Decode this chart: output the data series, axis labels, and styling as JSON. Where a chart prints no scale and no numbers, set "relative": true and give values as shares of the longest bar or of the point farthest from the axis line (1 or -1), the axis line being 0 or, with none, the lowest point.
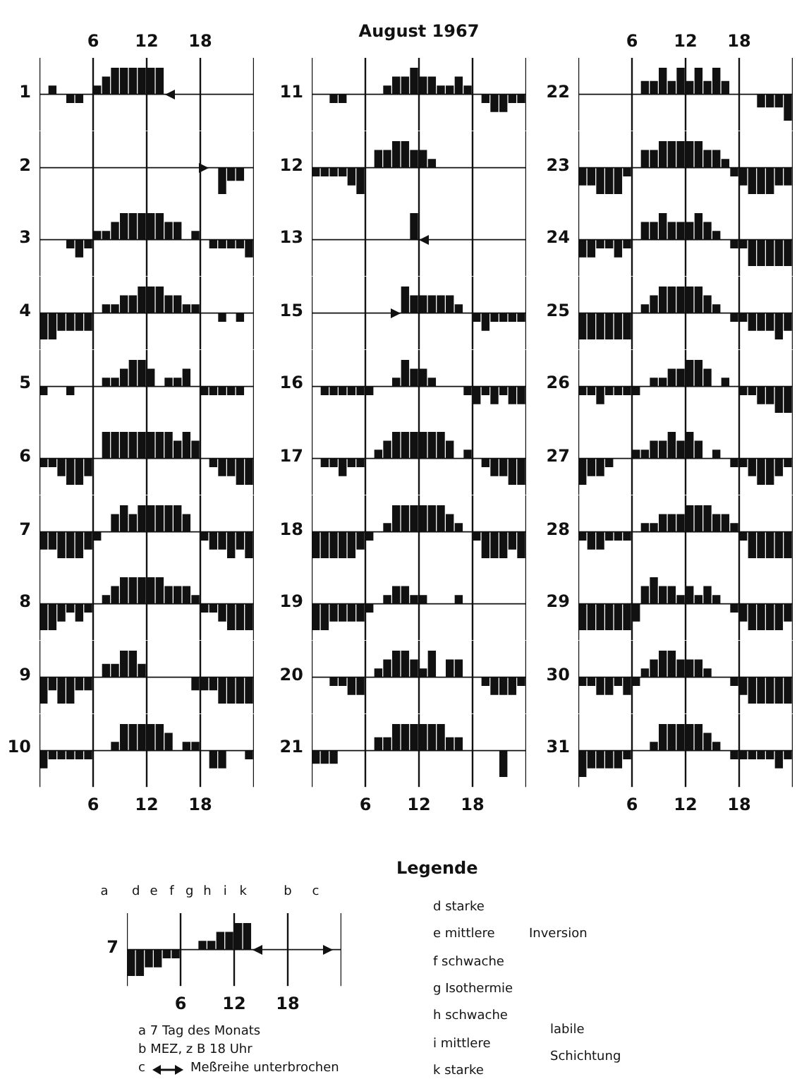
{
  "chart_data": [
    {
      "type": "bar",
      "relative": true,
      "ylabel": "1",
      "color": "#111111",
      "grid": "x",
      "tick_labels": "x",
      "xlim": [
        0,
        24
      ],
      "xticks": [
        6,
        12,
        18
      ],
      "x": [
        0.5,
        1.5,
        2.5,
        3.5,
        4.5,
        5.5,
        6.5,
        7.5,
        8.5,
        9.5,
        10.5,
        11.5,
        12.5,
        13.5
      ],
      "values": [
        0,
        0.33,
        0,
        -0.33,
        -0.33,
        0,
        0.33,
        0.67,
        1,
        1,
        1,
        1,
        1,
        1
      ]
    },
    {
      "type": "bar",
      "relative": true,
      "ylabel": "2",
      "color": "#111111",
      "grid": "x",
      "tick_labels": false,
      "xlim": [
        0,
        24
      ],
      "xticks": [
        6,
        12,
        18
      ],
      "x": [
        19.5,
        20.5,
        21.5,
        22.5,
        23.5
      ],
      "values": [
        0,
        -1,
        -0.5,
        -0.5,
        0
      ]
    },
    {
      "type": "bar",
      "relative": true,
      "ylabel": "3",
      "color": "#111111",
      "grid": "x",
      "tick_labels": false,
      "xlim": [
        0,
        24
      ],
      "xticks": [
        6,
        12,
        18
      ],
      "x": [
        0.5,
        1.5,
        2.5,
        3.5,
        4.5,
        5.5,
        6.5,
        7.5,
        8.5,
        9.5,
        10.5,
        11.5,
        12.5,
        13.5,
        14.5,
        15.5,
        16.5,
        17.5,
        18.5,
        19.5,
        20.5,
        21.5,
        22.5,
        23.5
      ],
      "values": [
        0,
        0,
        0,
        -0.33,
        -0.67,
        -0.33,
        0.33,
        0.33,
        0.67,
        1,
        1,
        1,
        1,
        1,
        0.67,
        0.67,
        0,
        0.33,
        0,
        -0.33,
        -0.33,
        -0.33,
        -0.33,
        -0.67
      ]
    },
    {
      "type": "bar",
      "relative": true,
      "ylabel": "4",
      "color": "#111111",
      "grid": "x",
      "tick_labels": false,
      "xlim": [
        0,
        24
      ],
      "xticks": [
        6,
        12,
        18
      ],
      "x": [
        0.5,
        1.5,
        2.5,
        3.5,
        4.5,
        5.5,
        6.5,
        7.5,
        8.5,
        9.5,
        10.5,
        11.5,
        12.5,
        13.5,
        14.5,
        15.5,
        16.5,
        17.5,
        18.5,
        19.5,
        20.5,
        21.5,
        22.5,
        23.5
      ],
      "values": [
        -1,
        -1,
        -0.67,
        -0.67,
        -0.67,
        -0.67,
        0,
        0.33,
        0.33,
        0.67,
        0.67,
        1,
        1,
        1,
        0.67,
        0.67,
        0.33,
        0.33,
        0,
        0,
        -0.33,
        0,
        -0.33,
        0
      ]
    },
    {
      "type": "bar",
      "relative": true,
      "ylabel": "5",
      "color": "#111111",
      "grid": "x",
      "tick_labels": false,
      "xlim": [
        0,
        24
      ],
      "xticks": [
        6,
        12,
        18
      ],
      "x": [
        0.5,
        1.5,
        2.5,
        3.5,
        4.5,
        5.5,
        6.5,
        7.5,
        8.5,
        9.5,
        10.5,
        11.5,
        12.5,
        13.5,
        14.5,
        15.5,
        16.5,
        17.5,
        18.5,
        19.5,
        20.5,
        21.5,
        22.5,
        23.5
      ],
      "values": [
        -0.33,
        0,
        0,
        -0.33,
        0,
        0,
        0,
        0.33,
        0.33,
        0.67,
        1,
        1,
        0.67,
        0,
        0.33,
        0.33,
        0.67,
        0,
        -0.33,
        -0.33,
        -0.33,
        -0.33,
        -0.33,
        0
      ]
    },
    {
      "type": "bar",
      "relative": true,
      "ylabel": "6",
      "color": "#111111",
      "grid": "x",
      "tick_labels": false,
      "xlim": [
        0,
        24
      ],
      "xticks": [
        6,
        12,
        18
      ],
      "x": [
        0.5,
        1.5,
        2.5,
        3.5,
        4.5,
        5.5,
        6.5,
        7.5,
        8.5,
        9.5,
        10.5,
        11.5,
        12.5,
        13.5,
        14.5,
        15.5,
        16.5,
        17.5,
        18.5,
        19.5,
        20.5,
        21.5,
        22.5,
        23.5
      ],
      "values": [
        -0.33,
        -0.33,
        -0.67,
        -1,
        -1,
        -0.67,
        0,
        1,
        1,
        1,
        1,
        1,
        1,
        1,
        1,
        0.67,
        1,
        0.67,
        0,
        -0.33,
        -0.67,
        -0.67,
        -1,
        -1
      ]
    },
    {
      "type": "bar",
      "relative": true,
      "ylabel": "7",
      "color": "#111111",
      "grid": "x",
      "tick_labels": false,
      "xlim": [
        0,
        24
      ],
      "xticks": [
        6,
        12,
        18
      ],
      "x": [
        0.5,
        1.5,
        2.5,
        3.5,
        4.5,
        5.5,
        6.5,
        7.5,
        8.5,
        9.5,
        10.5,
        11.5,
        12.5,
        13.5,
        14.5,
        15.5,
        16.5,
        17.5,
        18.5,
        19.5,
        20.5,
        21.5,
        22.5,
        23.5
      ],
      "values": [
        -0.67,
        -0.67,
        -1,
        -1,
        -1,
        -0.67,
        -0.33,
        0,
        0.67,
        1,
        0.67,
        1,
        1,
        1,
        1,
        1,
        0.67,
        0,
        -0.33,
        -0.67,
        -0.67,
        -1,
        -0.67,
        -1
      ]
    },
    {
      "type": "bar",
      "relative": true,
      "ylabel": "8",
      "color": "#111111",
      "grid": "x",
      "tick_labels": false,
      "xlim": [
        0,
        24
      ],
      "xticks": [
        6,
        12,
        18
      ],
      "x": [
        0.5,
        1.5,
        2.5,
        3.5,
        4.5,
        5.5,
        6.5,
        7.5,
        8.5,
        9.5,
        10.5,
        11.5,
        12.5,
        13.5,
        14.5,
        15.5,
        16.5,
        17.5,
        18.5,
        19.5,
        20.5,
        21.5,
        22.5,
        23.5
      ],
      "values": [
        -1,
        -1,
        -0.67,
        -0.33,
        -0.67,
        -0.33,
        0,
        0.33,
        0.67,
        1,
        1,
        1,
        1,
        1,
        0.67,
        0.67,
        0.67,
        0.33,
        -0.33,
        -0.33,
        -0.67,
        -1,
        -1,
        -1
      ]
    },
    {
      "type": "bar",
      "relative": true,
      "ylabel": "9",
      "color": "#111111",
      "grid": "x",
      "tick_labels": false,
      "xlim": [
        0,
        24
      ],
      "xticks": [
        6,
        12,
        18
      ],
      "x": [
        0.5,
        1.5,
        2.5,
        3.5,
        4.5,
        5.5,
        6.5,
        7.5,
        8.5,
        9.5,
        10.5,
        11.5,
        12.5,
        13.5,
        14.5,
        15.5,
        16.5,
        17.5,
        18.5,
        19.5,
        20.5,
        21.5,
        22.5,
        23.5
      ],
      "values": [
        -1,
        -0.5,
        -1,
        -1,
        -0.5,
        -0.5,
        0,
        0.5,
        0.5,
        1,
        1,
        0.5,
        0,
        0,
        0,
        0,
        0,
        -0.5,
        -0.5,
        -0.5,
        -1,
        -1,
        -1,
        -1
      ]
    },
    {
      "type": "bar",
      "relative": true,
      "ylabel": "10",
      "color": "#111111",
      "grid": "x",
      "tick_labels": "x",
      "xlim": [
        0,
        24
      ],
      "xticks": [
        6,
        12,
        18
      ],
      "x": [
        0.5,
        1.5,
        2.5,
        3.5,
        4.5,
        5.5,
        6.5,
        7.5,
        8.5,
        9.5,
        10.5,
        11.5,
        12.5,
        13.5,
        14.5,
        15.5,
        16.5,
        17.5,
        18.5,
        19.5,
        20.5,
        21.5,
        22.5,
        23.5
      ],
      "values": [
        -0.67,
        -0.33,
        -0.33,
        -0.33,
        -0.33,
        -0.33,
        0,
        0,
        0.33,
        1,
        1,
        1,
        1,
        1,
        0.67,
        0,
        0.33,
        0.33,
        0,
        -0.67,
        -0.67,
        0,
        0,
        -0.33
      ]
    },
    {
      "type": "bar",
      "relative": true,
      "title": "August 1967",
      "ylabel": "11",
      "color": "#111111",
      "grid": "x",
      "tick_labels": false,
      "xlim": [
        0,
        24
      ],
      "xticks": [
        6,
        12,
        18
      ],
      "x": [
        0.5,
        1.5,
        2.5,
        3.5,
        4.5,
        5.5,
        6.5,
        7.5,
        8.5,
        9.5,
        10.5,
        11.5,
        12.5,
        13.5,
        14.5,
        15.5,
        16.5,
        17.5,
        18.5,
        19.5,
        20.5,
        21.5,
        22.5,
        23.5
      ],
      "values": [
        0,
        0,
        -0.33,
        -0.33,
        0,
        0,
        0,
        0,
        0.33,
        0.67,
        0.67,
        1,
        0.67,
        0.67,
        0.33,
        0.33,
        0.67,
        0.33,
        0,
        -0.33,
        -0.67,
        -0.67,
        -0.33,
        -0.33
      ]
    },
    {
      "type": "bar",
      "relative": true,
      "ylabel": "12",
      "color": "#111111",
      "grid": "x",
      "tick_labels": false,
      "xlim": [
        0,
        24
      ],
      "xticks": [
        6,
        12,
        18
      ],
      "x": [
        0.5,
        1.5,
        2.5,
        3.5,
        4.5,
        5.5,
        6.5,
        7.5,
        8.5,
        9.5,
        10.5,
        11.5,
        12.5,
        13.5,
        14.5,
        15.5,
        16.5,
        17.5,
        18.5,
        19.5,
        20.5,
        21.5,
        22.5,
        23.5
      ],
      "values": [
        -0.33,
        -0.33,
        -0.33,
        -0.33,
        -0.67,
        -1,
        0,
        0.67,
        0.67,
        1,
        1,
        0.67,
        0.67,
        0.33,
        0,
        0,
        0,
        0,
        0,
        0,
        0,
        0,
        0,
        0
      ]
    },
    {
      "type": "bar",
      "relative": true,
      "ylabel": "13",
      "color": "#111111",
      "grid": "x",
      "tick_labels": false,
      "xlim": [
        0,
        24
      ],
      "xticks": [
        6,
        12,
        18
      ],
      "x": [
        0.5,
        1.5,
        2.5,
        3.5,
        4.5,
        5.5,
        6.5,
        7.5,
        8.5,
        9.5,
        10.5,
        11.5
      ],
      "values": [
        0,
        0,
        0,
        0,
        0,
        0,
        0,
        0,
        0,
        0,
        0,
        1
      ]
    },
    {
      "type": "bar",
      "relative": true,
      "ylabel": "15",
      "color": "#111111",
      "grid": "x",
      "tick_labels": false,
      "xlim": [
        0,
        24
      ],
      "xticks": [
        6,
        12,
        18
      ],
      "x": [
        10.5,
        11.5,
        12.5,
        13.5,
        14.5,
        15.5,
        16.5,
        17.5,
        18.5,
        19.5,
        20.5,
        21.5,
        22.5,
        23.5
      ],
      "values": [
        1,
        0.67,
        0.67,
        0.67,
        0.67,
        0.67,
        0.33,
        0,
        -0.33,
        -0.67,
        -0.33,
        -0.33,
        -0.33,
        -0.33
      ]
    },
    {
      "type": "bar",
      "relative": true,
      "ylabel": "16",
      "color": "#111111",
      "grid": "x",
      "tick_labels": false,
      "xlim": [
        0,
        24
      ],
      "xticks": [
        6,
        12,
        18
      ],
      "x": [
        0.5,
        1.5,
        2.5,
        3.5,
        4.5,
        5.5,
        6.5,
        7.5,
        8.5,
        9.5,
        10.5,
        11.5,
        12.5,
        13.5,
        14.5,
        15.5,
        16.5,
        17.5,
        18.5,
        19.5,
        20.5,
        21.5,
        22.5,
        23.5
      ],
      "values": [
        0,
        -0.33,
        -0.33,
        -0.33,
        -0.33,
        -0.33,
        -0.33,
        0,
        0,
        0.33,
        1,
        0.67,
        0.67,
        0.33,
        0,
        0,
        0,
        -0.33,
        -0.67,
        -0.33,
        -0.67,
        -0.33,
        -0.67,
        -0.67
      ]
    },
    {
      "type": "bar",
      "relative": true,
      "ylabel": "17",
      "color": "#111111",
      "grid": "x",
      "tick_labels": false,
      "xlim": [
        0,
        24
      ],
      "xticks": [
        6,
        12,
        18
      ],
      "x": [
        0.5,
        1.5,
        2.5,
        3.5,
        4.5,
        5.5,
        6.5,
        7.5,
        8.5,
        9.5,
        10.5,
        11.5,
        12.5,
        13.5,
        14.5,
        15.5,
        16.5,
        17.5,
        18.5,
        19.5,
        20.5,
        21.5,
        22.5,
        23.5
      ],
      "values": [
        0,
        -0.33,
        -0.33,
        -0.67,
        -0.33,
        -0.33,
        0,
        0.33,
        0.67,
        1,
        1,
        1,
        1,
        1,
        1,
        0.67,
        0,
        0.33,
        0,
        -0.33,
        -0.67,
        -0.67,
        -1,
        -1
      ]
    },
    {
      "type": "bar",
      "relative": true,
      "ylabel": "18",
      "color": "#111111",
      "grid": "x",
      "tick_labels": false,
      "xlim": [
        0,
        24
      ],
      "xticks": [
        6,
        12,
        18
      ],
      "x": [
        0.5,
        1.5,
        2.5,
        3.5,
        4.5,
        5.5,
        6.5,
        7.5,
        8.5,
        9.5,
        10.5,
        11.5,
        12.5,
        13.5,
        14.5,
        15.5,
        16.5,
        17.5,
        18.5,
        19.5,
        20.5,
        21.5,
        22.5,
        23.5
      ],
      "values": [
        -1,
        -1,
        -1,
        -1,
        -1,
        -0.67,
        -0.33,
        0,
        0.33,
        1,
        1,
        1,
        1,
        1,
        1,
        0.67,
        0.33,
        0,
        -0.33,
        -1,
        -1,
        -1,
        -0.67,
        -1
      ]
    },
    {
      "type": "bar",
      "relative": true,
      "ylabel": "19",
      "color": "#111111",
      "grid": "x",
      "tick_labels": false,
      "xlim": [
        0,
        24
      ],
      "xticks": [
        6,
        12,
        18
      ],
      "x": [
        0.5,
        1.5,
        2.5,
        3.5,
        4.5,
        5.5,
        6.5,
        7.5,
        8.5,
        9.5,
        10.5,
        11.5,
        12.5,
        13.5,
        14.5,
        15.5,
        16.5,
        17.5,
        18.5,
        19.5,
        20.5,
        21.5,
        22.5,
        23.5
      ],
      "values": [
        -1,
        -1,
        -0.67,
        -0.67,
        -0.67,
        -0.67,
        -0.33,
        0,
        0.33,
        0.67,
        0.67,
        0.33,
        0.33,
        0,
        0,
        0,
        0.33,
        0,
        0,
        0,
        0,
        0,
        0,
        0
      ]
    },
    {
      "type": "bar",
      "relative": true,
      "ylabel": "20",
      "color": "#111111",
      "grid": "x",
      "tick_labels": false,
      "xlim": [
        0,
        24
      ],
      "xticks": [
        6,
        12,
        18
      ],
      "x": [
        0.5,
        1.5,
        2.5,
        3.5,
        4.5,
        5.5,
        6.5,
        7.5,
        8.5,
        9.5,
        10.5,
        11.5,
        12.5,
        13.5,
        14.5,
        15.5,
        16.5,
        17.5,
        18.5,
        19.5,
        20.5,
        21.5,
        22.5,
        23.5
      ],
      "values": [
        0,
        0,
        -0.33,
        -0.33,
        -0.67,
        -0.67,
        0,
        0.33,
        0.67,
        1,
        1,
        0.67,
        0.33,
        1,
        0,
        0.67,
        0.67,
        0,
        0,
        -0.33,
        -0.67,
        -0.67,
        -0.67,
        -0.33
      ]
    },
    {
      "type": "bar",
      "relative": true,
      "ylabel": "21",
      "color": "#111111",
      "grid": "x",
      "tick_labels": "x",
      "xlim": [
        0,
        24
      ],
      "xticks": [
        6,
        12,
        18
      ],
      "x": [
        0.5,
        1.5,
        2.5,
        3.5,
        4.5,
        5.5,
        6.5,
        7.5,
        8.5,
        9.5,
        10.5,
        11.5,
        12.5,
        13.5,
        14.5,
        15.5,
        16.5,
        17.5,
        18.5,
        19.5,
        20.5,
        21.5,
        22.5,
        23.5
      ],
      "values": [
        -0.5,
        -0.5,
        -0.5,
        0,
        0,
        0,
        0,
        0.5,
        0.5,
        1,
        1,
        1,
        1,
        1,
        1,
        0.5,
        0.5,
        0,
        0,
        0,
        0,
        -1,
        0,
        0
      ]
    },
    {
      "type": "bar",
      "relative": true,
      "ylabel": "22",
      "color": "#111111",
      "grid": "x",
      "tick_labels": "x",
      "xlim": [
        0,
        24
      ],
      "xticks": [
        6,
        12,
        18
      ],
      "x": [
        0.5,
        1.5,
        2.5,
        3.5,
        4.5,
        5.5,
        6.5,
        7.5,
        8.5,
        9.5,
        10.5,
        11.5,
        12.5,
        13.5,
        14.5,
        15.5,
        16.5,
        17.5,
        18.5,
        19.5,
        20.5,
        21.5,
        22.5,
        23.5
      ],
      "values": [
        0,
        0,
        0,
        0,
        0,
        0,
        0,
        0.5,
        0.5,
        1,
        0.5,
        1,
        0.5,
        1,
        0.5,
        1,
        0.5,
        0,
        0,
        0,
        -0.5,
        -0.5,
        -0.5,
        -1
      ]
    },
    {
      "type": "bar",
      "relative": true,
      "ylabel": "23",
      "color": "#111111",
      "grid": "x",
      "tick_labels": false,
      "xlim": [
        0,
        24
      ],
      "xticks": [
        6,
        12,
        18
      ],
      "x": [
        0.5,
        1.5,
        2.5,
        3.5,
        4.5,
        5.5,
        6.5,
        7.5,
        8.5,
        9.5,
        10.5,
        11.5,
        12.5,
        13.5,
        14.5,
        15.5,
        16.5,
        17.5,
        18.5,
        19.5,
        20.5,
        21.5,
        22.5,
        23.5
      ],
      "values": [
        -0.67,
        -0.67,
        -1,
        -1,
        -1,
        -0.33,
        0,
        0.67,
        0.67,
        1,
        1,
        1,
        1,
        1,
        0.67,
        0.67,
        0.33,
        -0.33,
        -0.67,
        -1,
        -1,
        -1,
        -0.67,
        -0.67
      ]
    },
    {
      "type": "bar",
      "relative": true,
      "ylabel": "24",
      "color": "#111111",
      "grid": "x",
      "tick_labels": false,
      "xlim": [
        0,
        24
      ],
      "xticks": [
        6,
        12,
        18
      ],
      "x": [
        0.5,
        1.5,
        2.5,
        3.5,
        4.5,
        5.5,
        6.5,
        7.5,
        8.5,
        9.5,
        10.5,
        11.5,
        12.5,
        13.5,
        14.5,
        15.5,
        16.5,
        17.5,
        18.5,
        19.5,
        20.5,
        21.5,
        22.5,
        23.5
      ],
      "values": [
        -0.67,
        -0.67,
        -0.33,
        -0.33,
        -0.67,
        -0.33,
        0,
        0.67,
        0.67,
        1,
        0.67,
        0.67,
        0.67,
        1,
        0.67,
        0.33,
        0,
        -0.33,
        -0.33,
        -1,
        -1,
        -1,
        -1,
        -1
      ]
    },
    {
      "type": "bar",
      "relative": true,
      "ylabel": "25",
      "color": "#111111",
      "grid": "x",
      "tick_labels": false,
      "xlim": [
        0,
        24
      ],
      "xticks": [
        6,
        12,
        18
      ],
      "x": [
        0.5,
        1.5,
        2.5,
        3.5,
        4.5,
        5.5,
        6.5,
        7.5,
        8.5,
        9.5,
        10.5,
        11.5,
        12.5,
        13.5,
        14.5,
        15.5,
        16.5,
        17.5,
        18.5,
        19.5,
        20.5,
        21.5,
        22.5,
        23.5
      ],
      "values": [
        -1,
        -1,
        -1,
        -1,
        -1,
        -1,
        0,
        0.33,
        0.67,
        1,
        1,
        1,
        1,
        1,
        0.67,
        0.33,
        0,
        -0.33,
        -0.33,
        -0.67,
        -0.67,
        -0.67,
        -1,
        -0.67
      ]
    },
    {
      "type": "bar",
      "relative": true,
      "ylabel": "26",
      "color": "#111111",
      "grid": "x",
      "tick_labels": false,
      "xlim": [
        0,
        24
      ],
      "xticks": [
        6,
        12,
        18
      ],
      "x": [
        0.5,
        1.5,
        2.5,
        3.5,
        4.5,
        5.5,
        6.5,
        7.5,
        8.5,
        9.5,
        10.5,
        11.5,
        12.5,
        13.5,
        14.5,
        15.5,
        16.5,
        17.5,
        18.5,
        19.5,
        20.5,
        21.5,
        22.5,
        23.5
      ],
      "values": [
        -0.33,
        -0.33,
        -0.67,
        -0.33,
        -0.33,
        -0.33,
        -0.33,
        0,
        0.33,
        0.33,
        0.67,
        0.67,
        1,
        1,
        0.67,
        0,
        0.33,
        0,
        -0.33,
        -0.33,
        -0.67,
        -0.67,
        -1,
        -1
      ]
    },
    {
      "type": "bar",
      "relative": true,
      "ylabel": "27",
      "color": "#111111",
      "grid": "x",
      "tick_labels": false,
      "xlim": [
        0,
        24
      ],
      "xticks": [
        6,
        12,
        18
      ],
      "x": [
        0.5,
        1.5,
        2.5,
        3.5,
        4.5,
        5.5,
        6.5,
        7.5,
        8.5,
        9.5,
        10.5,
        11.5,
        12.5,
        13.5,
        14.5,
        15.5,
        16.5,
        17.5,
        18.5,
        19.5,
        20.5,
        21.5,
        22.5,
        23.5
      ],
      "values": [
        -1,
        -0.67,
        -0.67,
        -0.33,
        0,
        0,
        0.33,
        0.33,
        0.67,
        0.67,
        1,
        0.67,
        1,
        0.67,
        0,
        0.33,
        0,
        -0.33,
        -0.33,
        -0.67,
        -1,
        -1,
        -0.67,
        -0.33
      ]
    },
    {
      "type": "bar",
      "relative": true,
      "ylabel": "28",
      "color": "#111111",
      "grid": "x",
      "tick_labels": false,
      "xlim": [
        0,
        24
      ],
      "xticks": [
        6,
        12,
        18
      ],
      "x": [
        0.5,
        1.5,
        2.5,
        3.5,
        4.5,
        5.5,
        6.5,
        7.5,
        8.5,
        9.5,
        10.5,
        11.5,
        12.5,
        13.5,
        14.5,
        15.5,
        16.5,
        17.5,
        18.5,
        19.5,
        20.5,
        21.5,
        22.5,
        23.5
      ],
      "values": [
        -0.33,
        -0.67,
        -0.67,
        -0.33,
        -0.33,
        -0.33,
        0,
        0.33,
        0.33,
        0.67,
        0.67,
        0.67,
        1,
        1,
        1,
        0.67,
        0.67,
        0.33,
        -0.33,
        -1,
        -1,
        -1,
        -1,
        -1
      ]
    },
    {
      "type": "bar",
      "relative": true,
      "ylabel": "29",
      "color": "#111111",
      "grid": "x",
      "tick_labels": false,
      "xlim": [
        0,
        24
      ],
      "xticks": [
        6,
        12,
        18
      ],
      "x": [
        0.5,
        1.5,
        2.5,
        3.5,
        4.5,
        5.5,
        6.5,
        7.5,
        8.5,
        9.5,
        10.5,
        11.5,
        12.5,
        13.5,
        14.5,
        15.5,
        16.5,
        17.5,
        18.5,
        19.5,
        20.5,
        21.5,
        22.5,
        23.5
      ],
      "values": [
        -1,
        -1,
        -1,
        -1,
        -1,
        -1,
        -0.67,
        0.67,
        1,
        0.67,
        0.67,
        0.33,
        0.67,
        0.33,
        0.67,
        0.33,
        0,
        -0.33,
        -0.67,
        -1,
        -1,
        -1,
        -1,
        -0.67
      ]
    },
    {
      "type": "bar",
      "relative": true,
      "ylabel": "30",
      "color": "#111111",
      "grid": "x",
      "tick_labels": false,
      "xlim": [
        0,
        24
      ],
      "xticks": [
        6,
        12,
        18
      ],
      "x": [
        0.5,
        1.5,
        2.5,
        3.5,
        4.5,
        5.5,
        6.5,
        7.5,
        8.5,
        9.5,
        10.5,
        11.5,
        12.5,
        13.5,
        14.5,
        15.5,
        16.5,
        17.5,
        18.5,
        19.5,
        20.5,
        21.5,
        22.5,
        23.5
      ],
      "values": [
        -0.33,
        -0.33,
        -0.67,
        -0.67,
        -0.33,
        -0.67,
        -0.33,
        0.33,
        0.67,
        1,
        1,
        0.67,
        0.67,
        0.67,
        0.33,
        0,
        0,
        -0.33,
        -0.67,
        -1,
        -1,
        -1,
        -1,
        -1
      ]
    },
    {
      "type": "bar",
      "relative": true,
      "ylabel": "31",
      "color": "#111111",
      "grid": "x",
      "tick_labels": "x",
      "xlim": [
        0,
        24
      ],
      "xticks": [
        6,
        12,
        18
      ],
      "x": [
        0.5,
        1.5,
        2.5,
        3.5,
        4.5,
        5.5,
        6.5,
        7.5,
        8.5,
        9.5,
        10.5,
        11.5,
        12.5,
        13.5,
        14.5,
        15.5,
        16.5,
        17.5,
        18.5,
        19.5,
        20.5,
        21.5,
        22.5,
        23.5
      ],
      "values": [
        -1,
        -0.67,
        -0.67,
        -0.67,
        -0.67,
        -0.33,
        0,
        0,
        0.33,
        1,
        1,
        1,
        1,
        1,
        0.67,
        0.33,
        0,
        -0.33,
        -0.33,
        -0.33,
        -0.33,
        -0.33,
        -0.67,
        -0.33
      ]
    },
    {
      "type": "bar",
      "relative": true,
      "ylabel": "7",
      "color": "#111111",
      "grid": "x",
      "tick_labels": "x",
      "xlim": [
        0,
        24
      ],
      "xticks": [
        6,
        12,
        18
      ],
      "x": [
        0.5,
        1.5,
        2.5,
        3.5,
        4.5,
        5.5,
        6.5,
        7.5,
        8.5,
        9.5,
        10.5,
        11.5,
        12.5,
        13.5
      ],
      "values": [
        -1,
        -1,
        -0.67,
        -0.67,
        -0.33,
        -0.33,
        0,
        0,
        0.33,
        0.33,
        0.67,
        0.67,
        1,
        1
      ],
      "annotations": [
        "a",
        "d",
        "e",
        "f",
        "g",
        "h",
        "i",
        "k",
        "b",
        "c",
        "a 7 Tag des Monats",
        "b MEZ, z B 18 Uhr",
        "c",
        "Meßreihe unterbrochen"
      ]
    },
    {
      "type": "other",
      "title": "Legende",
      "annotations": [
        "d starke",
        "e mittlere",
        "f schwache",
        "g Isothermie",
        "h schwache",
        "i mittlere",
        "k starke",
        "Inversion",
        "labile",
        "Schichtung"
      ]
    }
  ]
}
